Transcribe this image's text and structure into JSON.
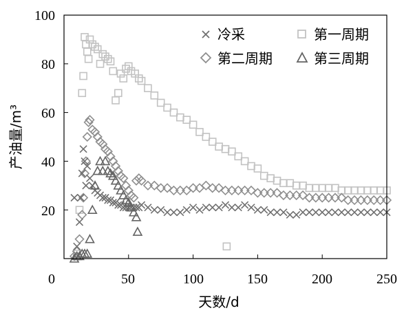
{
  "chart_data": {
    "type": "scatter",
    "title": "",
    "xlabel": "天数/d",
    "ylabel": "产油量/m³",
    "xlim": [
      0,
      250
    ],
    "ylim": [
      0,
      100
    ],
    "x_ticks": [
      "0",
      "50",
      "100",
      "150",
      "200",
      "250"
    ],
    "y_ticks": [
      "20",
      "40",
      "60",
      "80",
      "100"
    ],
    "grid": false,
    "legend_position": "top-right",
    "series": [
      {
        "name": "冷采",
        "marker": "x-cross",
        "color": "#6f6f6f",
        "x": [
          8,
          10,
          12,
          13,
          14,
          15,
          16,
          17,
          18,
          20,
          22,
          24,
          26,
          28,
          30,
          32,
          34,
          36,
          38,
          40,
          42,
          44,
          46,
          48,
          50,
          52,
          54,
          56,
          58,
          60,
          65,
          70,
          75,
          80,
          85,
          90,
          95,
          100,
          105,
          110,
          115,
          120,
          125,
          130,
          135,
          140,
          145,
          150,
          155,
          160,
          165,
          170,
          175,
          180,
          185,
          190,
          195,
          200,
          205,
          210,
          215,
          220,
          225,
          230,
          235,
          240,
          245,
          250
        ],
        "values": [
          25,
          5,
          15,
          25,
          35,
          45,
          40,
          30,
          38,
          33,
          30,
          28,
          27,
          26,
          25,
          25,
          24,
          24,
          23,
          23,
          22,
          22,
          21,
          21,
          21,
          21,
          21,
          21,
          21,
          22,
          21,
          20,
          20,
          19,
          19,
          19,
          20,
          21,
          20,
          21,
          21,
          21,
          22,
          21,
          21,
          22,
          21,
          20,
          20,
          19,
          19,
          19,
          18,
          18,
          19,
          19,
          19,
          19,
          19,
          19,
          19,
          19,
          19,
          19,
          19,
          19,
          19,
          19
        ]
      },
      {
        "name": "第一周期",
        "marker": "square",
        "color": "#c2c2c2",
        "x": [
          10,
          12,
          14,
          15,
          16,
          17,
          18,
          19,
          20,
          22,
          24,
          26,
          28,
          30,
          32,
          34,
          36,
          38,
          40,
          42,
          44,
          46,
          48,
          50,
          52,
          55,
          58,
          60,
          65,
          70,
          75,
          80,
          85,
          90,
          95,
          100,
          105,
          110,
          115,
          120,
          125,
          126,
          130,
          135,
          140,
          145,
          150,
          155,
          160,
          165,
          170,
          175,
          180,
          185,
          190,
          195,
          200,
          205,
          210,
          215,
          220,
          225,
          230,
          235,
          240,
          245,
          250
        ],
        "values": [
          2,
          20,
          68,
          75,
          91,
          88,
          85,
          82,
          90,
          88,
          87,
          86,
          80,
          84,
          83,
          82,
          81,
          77,
          65,
          68,
          76,
          74,
          78,
          79,
          77,
          76,
          74,
          73,
          70,
          67,
          64,
          62,
          60,
          58,
          57,
          55,
          52,
          50,
          48,
          46,
          45,
          5,
          44,
          42,
          40,
          38,
          37,
          34,
          33,
          32,
          31,
          31,
          30,
          30,
          29,
          29,
          29,
          29,
          29,
          28,
          28,
          28,
          28,
          28,
          28,
          28,
          28
        ]
      },
      {
        "name": "第二周期",
        "marker": "diamond",
        "color": "#8e8e8e",
        "x": [
          8,
          10,
          12,
          14,
          15,
          16,
          17,
          18,
          19,
          20,
          22,
          24,
          26,
          28,
          30,
          32,
          34,
          36,
          38,
          40,
          42,
          44,
          46,
          48,
          50,
          52,
          54,
          56,
          58,
          60,
          65,
          70,
          75,
          80,
          85,
          90,
          95,
          100,
          105,
          110,
          115,
          120,
          125,
          130,
          135,
          140,
          145,
          150,
          155,
          160,
          165,
          170,
          175,
          180,
          185,
          190,
          195,
          200,
          205,
          210,
          215,
          220,
          225,
          230,
          235,
          240,
          245,
          250
        ],
        "values": [
          1,
          3,
          8,
          18,
          25,
          35,
          40,
          50,
          56,
          57,
          53,
          52,
          50,
          48,
          47,
          45,
          44,
          42,
          40,
          38,
          36,
          34,
          33,
          30,
          28,
          26,
          25,
          32,
          33,
          32,
          30,
          30,
          29,
          29,
          28,
          28,
          28,
          29,
          29,
          30,
          29,
          29,
          28,
          28,
          28,
          28,
          28,
          27,
          27,
          27,
          27,
          26,
          26,
          26,
          26,
          25,
          25,
          25,
          25,
          25,
          25,
          24,
          24,
          24,
          24,
          24,
          24,
          24
        ]
      },
      {
        "name": "第三周期",
        "marker": "triangle",
        "color": "#636363",
        "x": [
          8,
          10,
          12,
          14,
          16,
          18,
          20,
          22,
          24,
          26,
          28,
          30,
          32,
          34,
          36,
          38,
          40,
          42,
          44,
          46,
          48,
          50,
          52,
          54,
          56,
          57
        ],
        "values": [
          0,
          1,
          1,
          2,
          2,
          2,
          8,
          20,
          30,
          36,
          40,
          36,
          40,
          36,
          35,
          34,
          32,
          30,
          28,
          26,
          24,
          23,
          21,
          19,
          17,
          11
        ]
      }
    ]
  }
}
